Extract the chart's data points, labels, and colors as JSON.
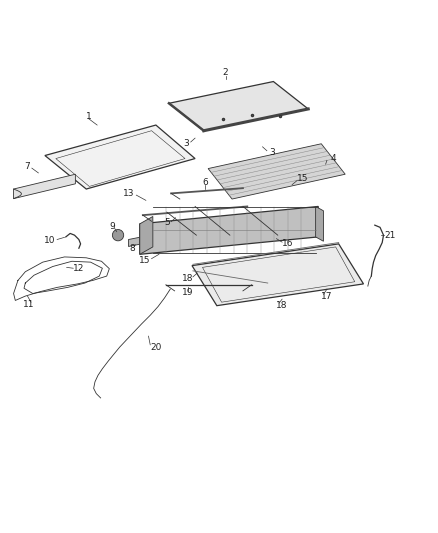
{
  "background_color": "#ffffff",
  "line_color": "#333333",
  "figsize": [
    4.38,
    5.33
  ],
  "dpi": 100
}
